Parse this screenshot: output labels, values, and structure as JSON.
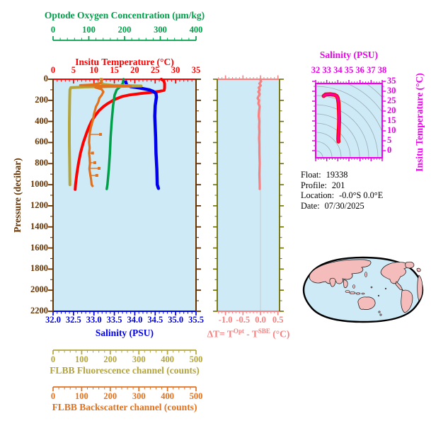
{
  "colors": {
    "panel_bg": "#cdeaf6",
    "oxygen": "#00a04a",
    "temperature": "#ff0000",
    "pressure_frame": "#663300",
    "salinity": "#0000ee",
    "fluorescence": "#b3a43c",
    "backscatter": "#e2711d",
    "delta_t": "#f88080",
    "mid_frame_olive": "#6e6e00",
    "magenta": "#ee00ee",
    "ts_line": "#ff0099",
    "ts_line_edge": "#ff0000",
    "contour_gray": "#9aabb4",
    "map_land": "#f5bcbc",
    "map_outline": "#000000",
    "gridline": "#c9c9c9"
  },
  "axes": {
    "oxygen": {
      "title": "Optode Oxygen Concentration (μm/kg)",
      "ticks": [
        "0",
        "100",
        "200",
        "300",
        "400"
      ]
    },
    "temperature": {
      "title": "Insitu Temperature (°C)",
      "ticks": [
        "0",
        "5",
        "10",
        "15",
        "20",
        "25",
        "30",
        "35"
      ]
    },
    "pressure": {
      "title": "Pressure (decibar)",
      "ticks": [
        "0",
        "200",
        "400",
        "600",
        "800",
        "1000",
        "1200",
        "1400",
        "1600",
        "1800",
        "2000",
        "2200"
      ]
    },
    "salinity": {
      "title": "Salinity (PSU)",
      "ticks": [
        "32.0",
        "32.5",
        "33.0",
        "33.5",
        "34.0",
        "34.5",
        "35.0",
        "35.5"
      ]
    },
    "fluorescence": {
      "title": "FLBB Fluorescence channel (counts)",
      "ticks": [
        "0",
        "100",
        "200",
        "300",
        "400",
        "500"
      ]
    },
    "backscatter": {
      "title": "FLBB Backscatter channel (counts)",
      "ticks": [
        "0",
        "100",
        "200",
        "300",
        "400",
        "500"
      ]
    },
    "delta_t": {
      "title_prefix": "ΔT= T",
      "title_sup1": "Opt",
      "title_mid": " - T",
      "title_sup2": "SBE",
      "title_suffix": " (°C)",
      "ticks": [
        "-1.0",
        "-0.5",
        "0.0",
        "0.5"
      ]
    },
    "ts_salinity": {
      "title": "Salinity (PSU)",
      "ticks": [
        "32",
        "33",
        "34",
        "35",
        "36",
        "37",
        "38"
      ]
    },
    "ts_temperature": {
      "title": "Insitu Temperature (°C)",
      "ticks": [
        "35",
        "30",
        "25",
        "20",
        "15",
        "10",
        "5",
        "0"
      ]
    }
  },
  "info": {
    "float_label": "Float:",
    "float_value": "19338",
    "profile_label": "Profile:",
    "profile_value": "201",
    "location_label": "Location:",
    "location_value": "-0.0°S  0.0°E",
    "date_label": "Date:",
    "date_value": "07/30/2025"
  },
  "chart_data": [
    {
      "id": "main-profile-panel",
      "type": "line",
      "y_axis": {
        "label": "Pressure (decibar)",
        "range": [
          0,
          2200
        ],
        "direction": "down",
        "major_tick": 200,
        "minor_tick": 100
      },
      "x_axes": {
        "temperature": {
          "label": "Insitu Temperature (°C)",
          "range": [
            0,
            35
          ]
        },
        "oxygen": {
          "label": "Optode Oxygen Concentration (μm/kg)",
          "range": [
            0,
            400
          ]
        },
        "salinity": {
          "label": "Salinity (PSU)",
          "range": [
            32,
            35.5
          ]
        },
        "counts": {
          "label": "FLBB channels (counts)",
          "range": [
            0,
            500
          ]
        }
      },
      "series": [
        {
          "name": "insitu-temperature",
          "scale": "temperature",
          "color": "#ff0000",
          "width": 4,
          "points": [
            [
              0,
              26.5
            ],
            [
              15,
              27.1
            ],
            [
              40,
              27.3
            ],
            [
              80,
              27.3
            ],
            [
              105,
              27.2
            ],
            [
              115,
              26.0
            ],
            [
              125,
              24.0
            ],
            [
              135,
              21.5
            ],
            [
              150,
              18.5
            ],
            [
              165,
              16.8
            ],
            [
              185,
              15.5
            ],
            [
              200,
              14.7
            ],
            [
              230,
              13.4
            ],
            [
              260,
              12.3
            ],
            [
              300,
              11.2
            ],
            [
              350,
              10.2
            ],
            [
              400,
              9.4
            ],
            [
              450,
              8.8
            ],
            [
              500,
              8.3
            ],
            [
              600,
              7.4
            ],
            [
              700,
              6.7
            ],
            [
              800,
              6.2
            ],
            [
              900,
              5.8
            ],
            [
              1000,
              5.5
            ],
            [
              1045,
              5.4
            ]
          ]
        },
        {
          "name": "salinity",
          "scale": "salinity",
          "color": "#0000ee",
          "width": 4.5,
          "points": [
            [
              25,
              33.78
            ],
            [
              55,
              33.8
            ],
            [
              70,
              33.9
            ],
            [
              85,
              34.15
            ],
            [
              100,
              34.35
            ],
            [
              115,
              34.45
            ],
            [
              135,
              34.52
            ],
            [
              170,
              34.53
            ],
            [
              250,
              34.5
            ],
            [
              350,
              34.49
            ],
            [
              450,
              34.5
            ],
            [
              550,
              34.51
            ],
            [
              700,
              34.52
            ],
            [
              850,
              34.54
            ],
            [
              1000,
              34.55
            ],
            [
              1035,
              34.58
            ]
          ]
        },
        {
          "name": "optode-oxygen",
          "scale": "oxygen",
          "color": "#00a04a",
          "width": 3.5,
          "points": [
            [
              0,
              197
            ],
            [
              40,
              195
            ],
            [
              70,
              188
            ],
            [
              100,
              178
            ],
            [
              150,
              172
            ],
            [
              250,
              168
            ],
            [
              400,
              164
            ],
            [
              550,
              161
            ],
            [
              700,
              159
            ],
            [
              850,
              156
            ],
            [
              1000,
              152
            ],
            [
              1040,
              150
            ]
          ]
        },
        {
          "name": "flbb-fluorescence",
          "scale": "counts",
          "color": "#b3a43c",
          "width": 4,
          "points": [
            [
              0,
              167
            ],
            [
              30,
              169
            ],
            [
              48,
              175
            ],
            [
              58,
              210
            ],
            [
              64,
              308
            ],
            [
              68,
              235
            ],
            [
              73,
              110
            ],
            [
              80,
              62
            ],
            [
              100,
              59
            ],
            [
              200,
              58
            ],
            [
              400,
              57
            ],
            [
              600,
              57
            ],
            [
              800,
              58
            ],
            [
              1000,
              59
            ]
          ]
        },
        {
          "name": "flbb-backscatter",
          "scale": "counts",
          "color": "#e2711d",
          "width": 3.2,
          "points": [
            [
              0,
              172
            ],
            [
              35,
              168
            ],
            [
              50,
              140
            ],
            [
              57,
              95
            ],
            [
              62,
              200
            ],
            [
              66,
              272
            ],
            [
              70,
              190
            ],
            [
              78,
              148
            ],
            [
              95,
              170
            ],
            [
              120,
              176
            ],
            [
              150,
              170
            ],
            [
              180,
              162
            ],
            [
              220,
              158
            ],
            [
              260,
              150
            ],
            [
              300,
              146
            ],
            [
              340,
              142
            ],
            [
              380,
              140
            ],
            [
              420,
              136
            ],
            [
              460,
              132
            ],
            [
              500,
              129
            ],
            [
              550,
              127
            ],
            [
              600,
              126
            ],
            [
              650,
              128
            ],
            [
              700,
              126
            ],
            [
              750,
              128
            ],
            [
              800,
              129
            ],
            [
              850,
              127
            ],
            [
              900,
              130
            ],
            [
              950,
              133
            ],
            [
              1000,
              135
            ],
            [
              1012,
              138
            ]
          ],
          "spikes": [
            [
              523,
              128,
              166
            ],
            [
              700,
              126,
              138
            ],
            [
              791,
              126,
              146
            ],
            [
              845,
              128,
              161
            ],
            [
              912,
              127,
              153
            ]
          ]
        }
      ]
    },
    {
      "id": "delta-t-panel",
      "type": "line",
      "x_axis": {
        "label": "ΔT= TOpt - TSBE (°C)",
        "range": [
          -1.22,
          0.56
        ],
        "major_tick": 0.5,
        "minor_tick": 0.1
      },
      "y_axis": {
        "label": "Pressure (decibar)",
        "range": [
          0,
          2200
        ],
        "direction": "down"
      },
      "series": [
        {
          "name": "delta-t",
          "scale": "delta",
          "color": "#f88080",
          "width": 3.2,
          "points": [
            [
              0,
              -0.01
            ],
            [
              20,
              0.02
            ],
            [
              40,
              -0.03
            ],
            [
              60,
              0.01
            ],
            [
              80,
              -0.05
            ],
            [
              100,
              -0.02
            ],
            [
              120,
              -0.06
            ],
            [
              140,
              -0.02
            ],
            [
              160,
              -0.05
            ],
            [
              180,
              -0.08
            ],
            [
              200,
              -0.04
            ],
            [
              230,
              -0.06
            ],
            [
              260,
              -0.02
            ],
            [
              300,
              -0.04
            ],
            [
              350,
              -0.05
            ],
            [
              400,
              -0.03
            ],
            [
              450,
              -0.04
            ],
            [
              500,
              -0.03
            ],
            [
              560,
              -0.04
            ],
            [
              620,
              -0.03
            ],
            [
              700,
              -0.03
            ],
            [
              800,
              -0.02
            ],
            [
              900,
              -0.03
            ],
            [
              1000,
              -0.02
            ],
            [
              1040,
              -0.02
            ]
          ]
        }
      ]
    },
    {
      "id": "ts-diagram-panel",
      "type": "line",
      "x_axis": {
        "label": "Salinity (PSU)",
        "range": [
          32,
          38
        ]
      },
      "y_axis": {
        "label": "Insitu Temperature (°C)",
        "range": [
          0,
          35
        ]
      },
      "series": [
        {
          "name": "ts-profile",
          "color": "#ff0099",
          "underlay_color": "#ff0000",
          "width": 3,
          "points": [
            [
              32.72,
              27.6
            ],
            [
              32.9,
              28.4
            ],
            [
              33.3,
              28.5
            ],
            [
              33.7,
              28.2
            ],
            [
              33.9,
              27.6
            ],
            [
              34.0,
              26.5
            ],
            [
              34.07,
              24.0
            ],
            [
              34.1,
              20.0
            ],
            [
              34.12,
              16.0
            ],
            [
              34.1,
              12.0
            ],
            [
              34.06,
              8.5
            ],
            [
              34.04,
              6.0
            ],
            [
              34.06,
              4.6
            ]
          ]
        }
      ]
    }
  ]
}
